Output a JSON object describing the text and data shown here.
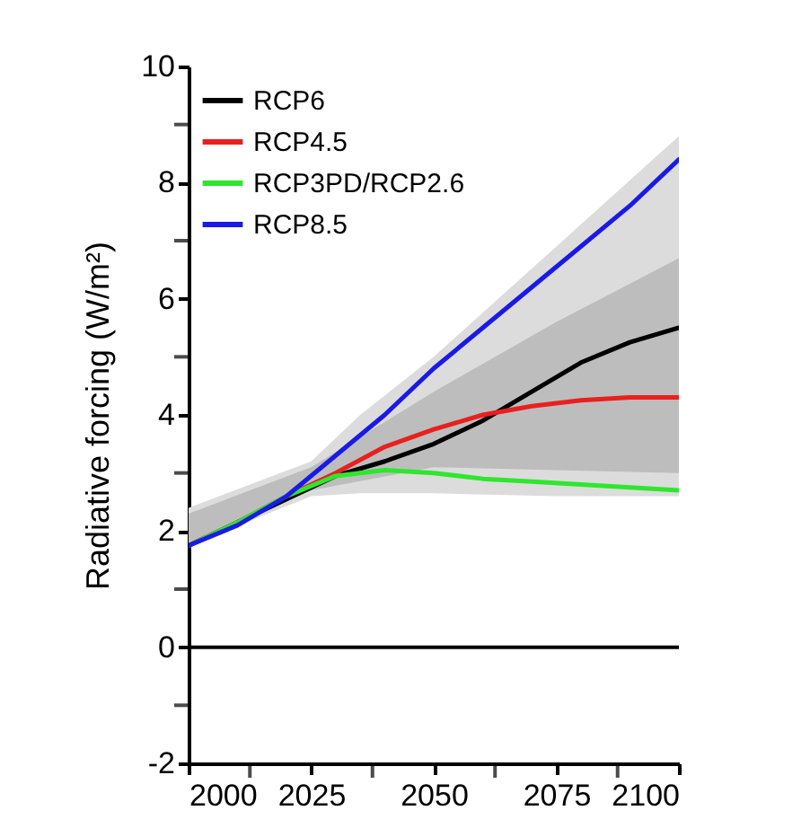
{
  "chart_data": {
    "type": "line",
    "ylabel": "Radiative forcing (W/m²)",
    "xlim": [
      2000,
      2100
    ],
    "ylim": [
      -2,
      10
    ],
    "xticks": [
      2000,
      {
        "value": 2012.5,
        "label": null
      },
      2025,
      {
        "value": 2037.5,
        "label": null
      },
      2050,
      {
        "value": 2062.5,
        "label": null
      },
      2075,
      {
        "value": 2087.5,
        "label": null
      },
      2100
    ],
    "yticks": [
      -2,
      {
        "value": -1,
        "label": null
      },
      0,
      {
        "value": 1,
        "label": null
      },
      2,
      {
        "value": 3,
        "label": null
      },
      4,
      {
        "value": 5,
        "label": null
      },
      6,
      {
        "value": 7,
        "label": null
      },
      8,
      {
        "value": 9,
        "label": null
      },
      10
    ],
    "grid": false,
    "legend": "top left",
    "line_style": "solid",
    "marker": "none",
    "ref_lines": [
      {
        "axis": "y",
        "value": 0,
        "color": "#000000"
      }
    ],
    "series": [
      {
        "type": "area",
        "color": "#dcdcdc",
        "x": [
          2000,
          2025,
          2035,
          2050,
          2075,
          2100
        ],
        "values": [
          null,
          null,
          null,
          null,
          null,
          null
        ],
        "lower": [
          1.75,
          2.6,
          2.65,
          2.65,
          2.6,
          2.6
        ],
        "upper": [
          2.4,
          3.2,
          4.0,
          5.0,
          6.9,
          8.8
        ]
      },
      {
        "type": "area",
        "color": "#bdbdbd",
        "x": [
          2000,
          2025,
          2050,
          2075,
          2100
        ],
        "values": [
          null,
          null,
          null,
          null,
          null
        ],
        "lower": [
          1.8,
          2.7,
          3.1,
          3.05,
          3.0
        ],
        "upper": [
          2.3,
          3.1,
          4.4,
          5.6,
          6.7
        ]
      },
      {
        "name": "RCP6",
        "color": "#000000",
        "x": [
          2000,
          2010,
          2020,
          2030,
          2040,
          2050,
          2060,
          2070,
          2080,
          2090,
          2100
        ],
        "values": [
          1.75,
          2.15,
          2.55,
          2.95,
          3.2,
          3.5,
          3.9,
          4.4,
          4.9,
          5.25,
          5.5
        ]
      },
      {
        "name": "RCP4.5",
        "color": "#e8201e",
        "x": [
          2000,
          2010,
          2020,
          2030,
          2040,
          2050,
          2060,
          2070,
          2080,
          2090,
          2100
        ],
        "values": [
          1.75,
          2.15,
          2.6,
          3.0,
          3.45,
          3.75,
          4.0,
          4.15,
          4.25,
          4.3,
          4.3
        ]
      },
      {
        "name": "RCP3PD/RCP2.6",
        "color": "#2ee62e",
        "x": [
          2000,
          2010,
          2020,
          2030,
          2040,
          2050,
          2060,
          2070,
          2080,
          2090,
          2100
        ],
        "values": [
          1.75,
          2.15,
          2.6,
          2.95,
          3.05,
          3.0,
          2.9,
          2.85,
          2.8,
          2.75,
          2.7
        ]
      },
      {
        "name": "RCP8.5",
        "color": "#1a1ae6",
        "x": [
          2000,
          2010,
          2020,
          2030,
          2040,
          2050,
          2060,
          2070,
          2080,
          2090,
          2100
        ],
        "values": [
          1.75,
          2.1,
          2.6,
          3.3,
          4.0,
          4.8,
          5.5,
          6.2,
          6.9,
          7.6,
          8.4
        ]
      }
    ]
  }
}
